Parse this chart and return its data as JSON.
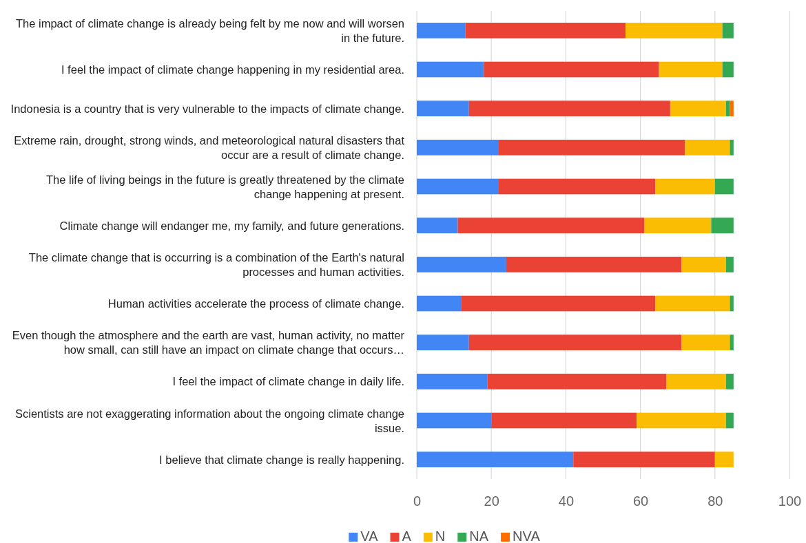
{
  "chart_data": {
    "type": "bar",
    "orientation": "horizontal",
    "stacked": true,
    "categories": [
      "The impact of climate change is already being felt by me now and will worsen in the future.",
      "I feel the impact of climate change happening in my residential area.",
      "Indonesia is a country that is very vulnerable to the impacts of climate change.",
      "Extreme rain, drought, strong winds, and meteorological natural disasters that occur are a result of climate change.",
      "The life of living beings in the future is greatly threatened by the climate change happening at present.",
      "Climate change will endanger me, my family, and future generations.",
      "The climate change that is occurring is a combination of the Earth's natural processes and human activities.",
      "Human activities accelerate the process of climate change.",
      "Even though the atmosphere and the earth are vast, human activity, no matter how small, can still have an impact on climate change that occurs…",
      "I feel the impact of climate change in daily life.",
      "Scientists are not exaggerating information about the ongoing climate change issue.",
      "I believe that climate change is really happening."
    ],
    "series": [
      {
        "name": "VA",
        "color": "#4285f4",
        "values": [
          13,
          18,
          14,
          22,
          22,
          11,
          24,
          12,
          14,
          19,
          20,
          42
        ]
      },
      {
        "name": "A",
        "color": "#ea4335",
        "values": [
          43,
          47,
          54,
          50,
          42,
          50,
          47,
          52,
          57,
          48,
          39,
          38
        ]
      },
      {
        "name": "N",
        "color": "#fbbc04",
        "values": [
          26,
          17,
          15,
          12,
          16,
          18,
          12,
          20,
          13,
          16,
          24,
          5
        ]
      },
      {
        "name": "NA",
        "color": "#34a853",
        "values": [
          3,
          3,
          1,
          1,
          5,
          6,
          2,
          1,
          1,
          2,
          2,
          0
        ]
      },
      {
        "name": "NVA",
        "color": "#ff6d01",
        "values": [
          0,
          0,
          1,
          0,
          0,
          0,
          0,
          0,
          0,
          0,
          0,
          0
        ]
      }
    ],
    "xlim": [
      0,
      100
    ],
    "xticks": [
      0,
      20,
      40,
      60,
      80,
      100
    ],
    "grid": "x",
    "legend": "bottom"
  }
}
